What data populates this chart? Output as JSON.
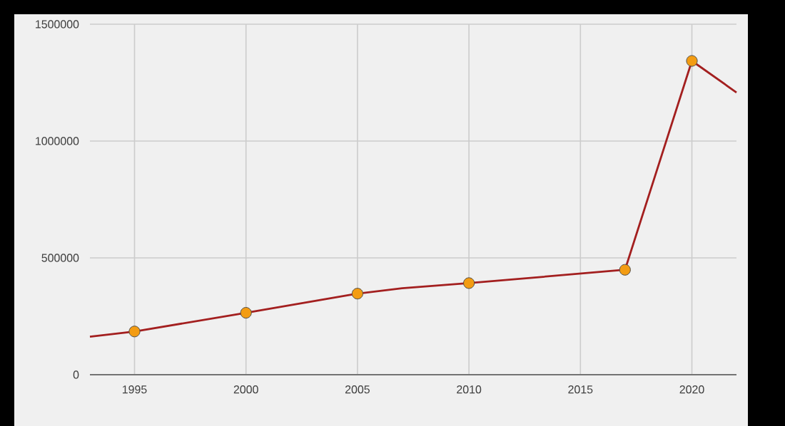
{
  "chart_data": {
    "type": "line",
    "xlim": [
      1993,
      2022
    ],
    "ylim": [
      0,
      1500000
    ],
    "xticks": [
      1995,
      2000,
      2005,
      2010,
      2015,
      2020
    ],
    "yticks": [
      0,
      500000,
      1000000,
      1500000
    ],
    "grid": true,
    "series": [
      {
        "color": "#a31f1f",
        "marker": "none",
        "x": [
          1993,
          1995,
          2000,
          2005,
          2007,
          2010,
          2017,
          2020,
          2022
        ],
        "values": [
          163000,
          185000,
          265000,
          347000,
          370000,
          392000,
          449000,
          1343000,
          1208000
        ]
      },
      {
        "type": "scatter",
        "color": "#f39c12",
        "marker": "circle",
        "x": [
          1995,
          2000,
          2005,
          2010,
          2017,
          2020
        ],
        "values": [
          185000,
          265000,
          347000,
          392000,
          449000,
          1343000
        ]
      }
    ]
  }
}
